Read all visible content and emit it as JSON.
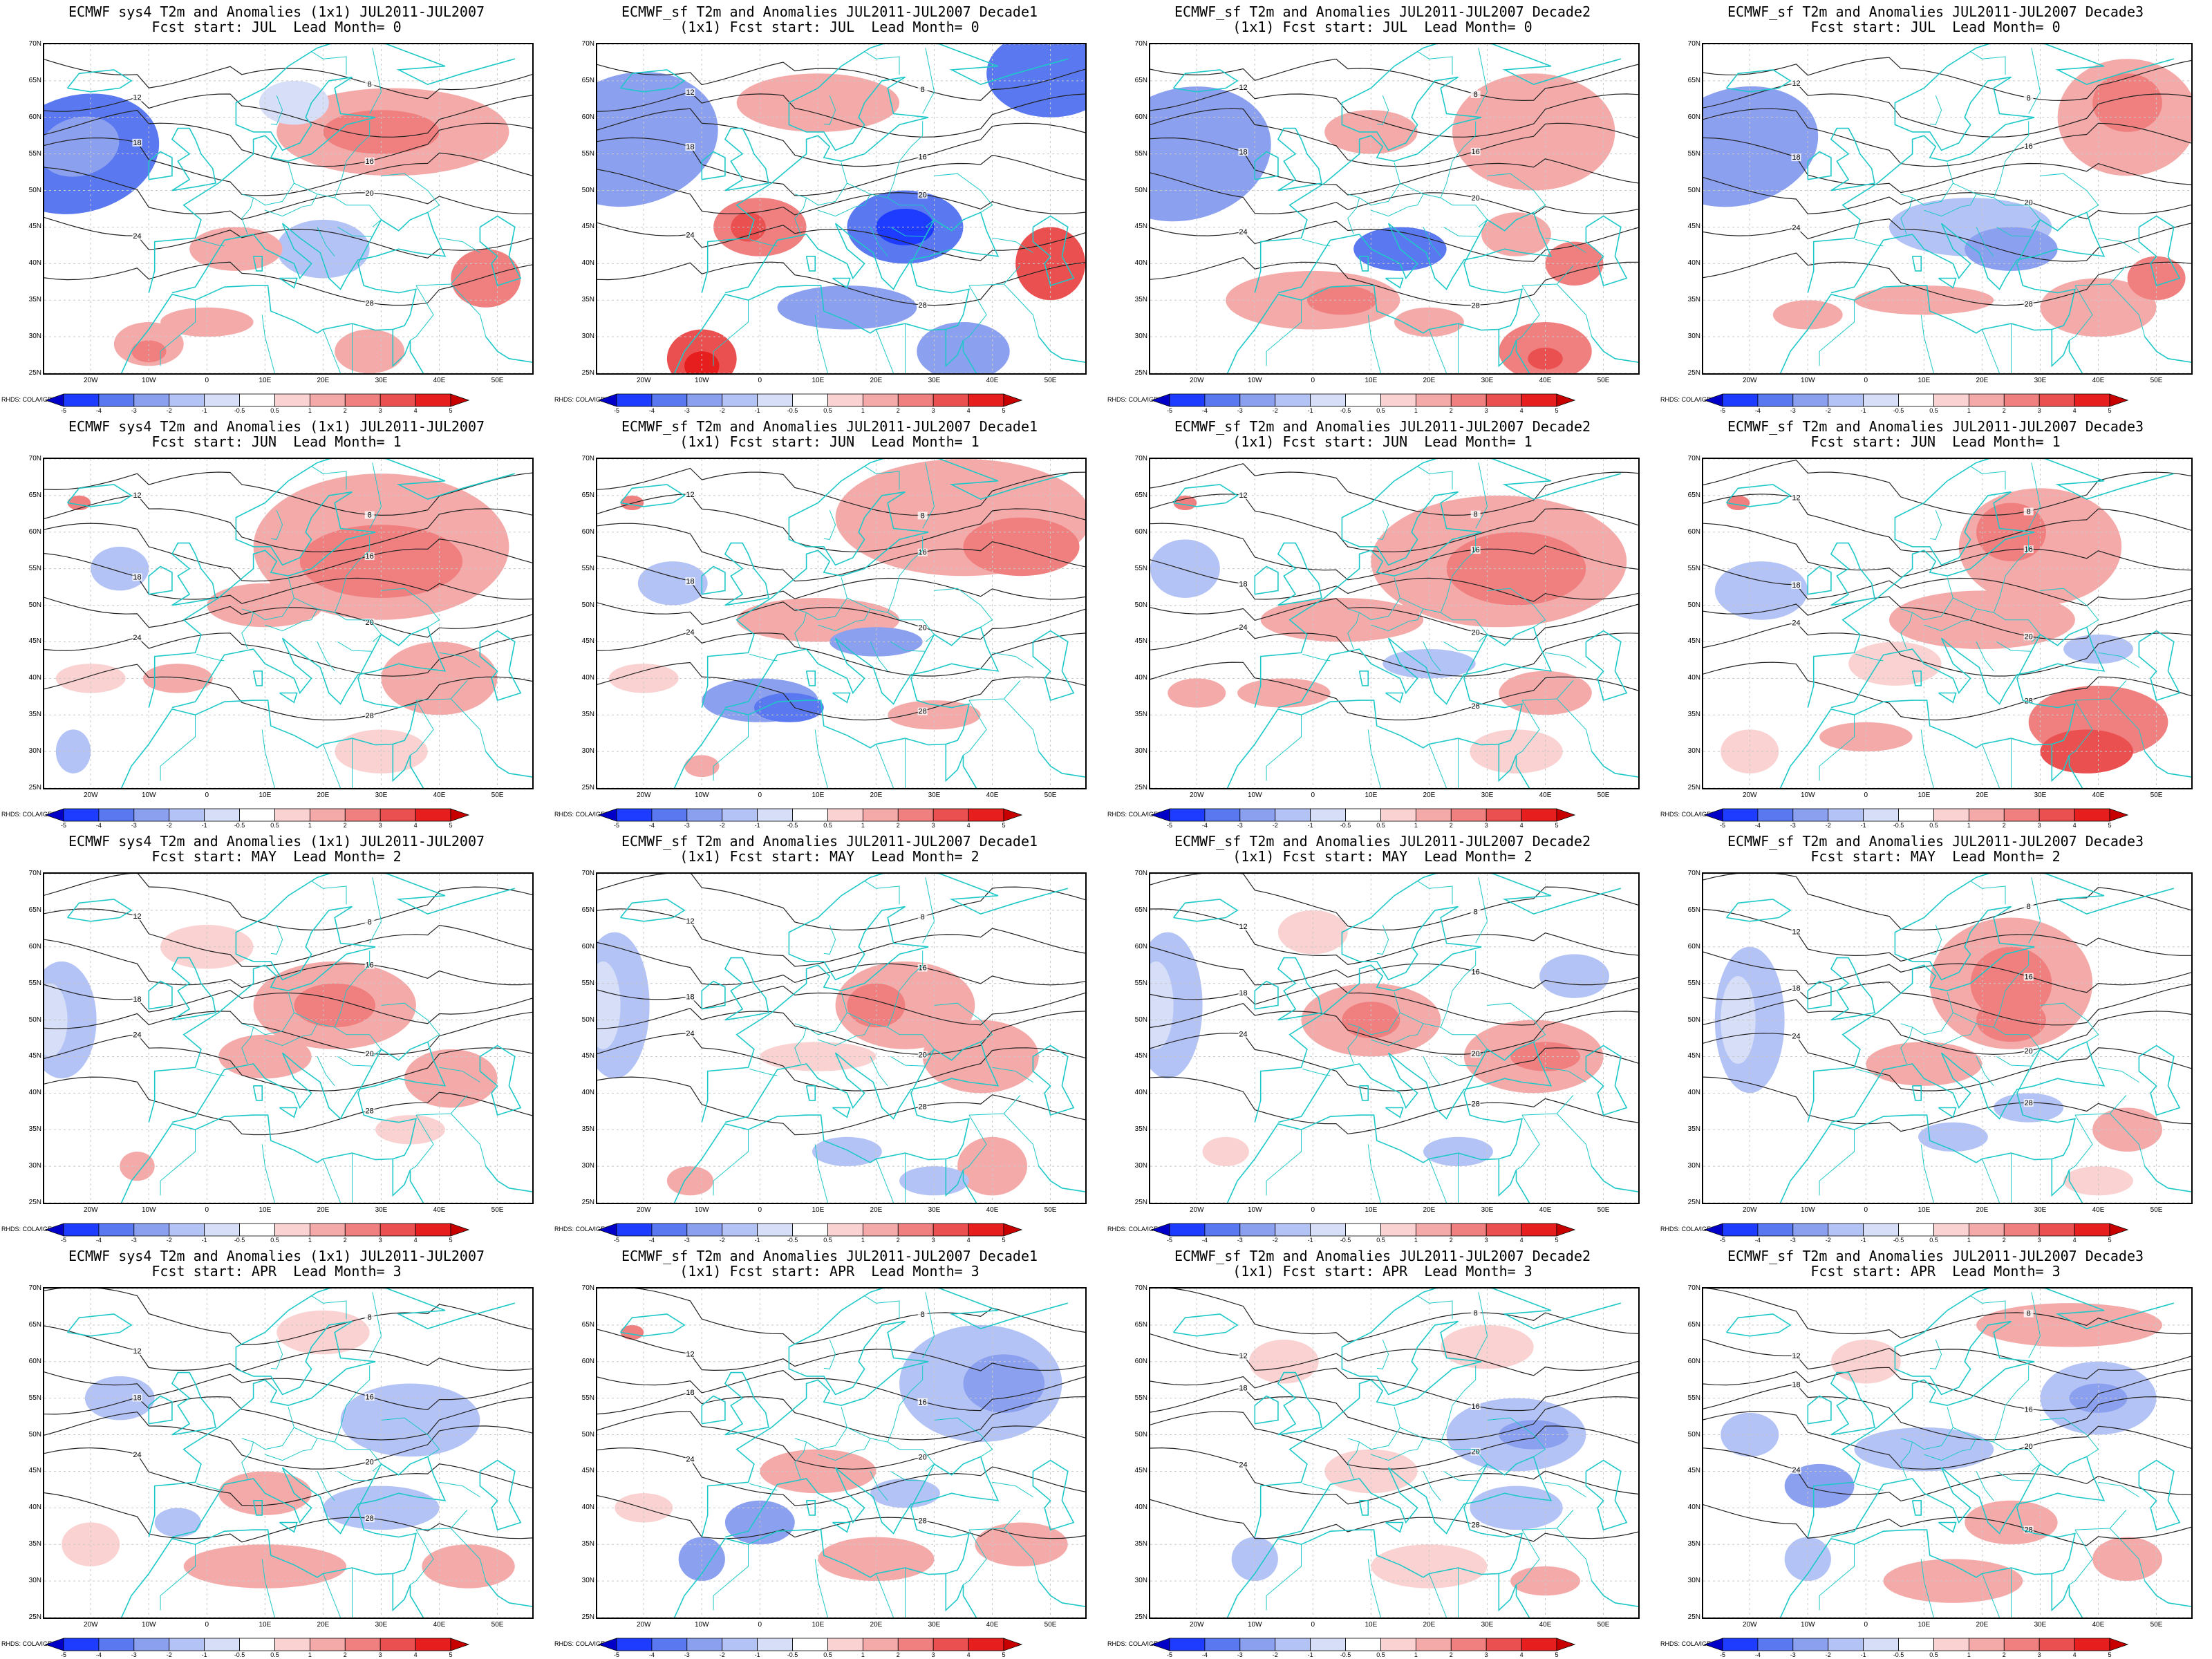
{
  "panels": [
    {
      "line1": "ECMWF sys4 T2m and Anomalies (1x1) JUL2011-JUL2007",
      "line2": "Fcst start: JUL  Lead Month= 0",
      "pattern": "r0c0"
    },
    {
      "line1": "ECMWF_sf T2m and Anomalies JUL2011-JUL2007 Decade1",
      "line2": "(1x1) Fcst start: JUL  Lead Month= 0",
      "pattern": "r0c1"
    },
    {
      "line1": "ECMWF_sf T2m and Anomalies JUL2011-JUL2007 Decade2",
      "line2": "(1x1) Fcst start: JUL  Lead Month= 0",
      "pattern": "r0c2"
    },
    {
      "line1": "ECMWF_sf T2m and Anomalies JUL2011-JUL2007 Decade3",
      "line2": "Fcst start: JUL  Lead Month= 0",
      "pattern": "r0c3"
    },
    {
      "line1": "ECMWF sys4 T2m and Anomalies (1x1) JUL2011-JUL2007",
      "line2": "Fcst start: JUN  Lead Month= 1",
      "pattern": "r1c0"
    },
    {
      "line1": "ECMWF_sf T2m and Anomalies JUL2011-JUL2007 Decade1",
      "line2": "(1x1) Fcst start: JUN  Lead Month= 1",
      "pattern": "r1c1"
    },
    {
      "line1": "ECMWF_sf T2m and Anomalies JUL2011-JUL2007 Decade2",
      "line2": "(1x1) Fcst start: JUN  Lead Month= 1",
      "pattern": "r1c2"
    },
    {
      "line1": "ECMWF_sf T2m and Anomalies JUL2011-JUL2007 Decade3",
      "line2": "Fcst start: JUN  Lead Month= 1",
      "pattern": "r1c3"
    },
    {
      "line1": "ECMWF sys4 T2m and Anomalies (1x1) JUL2011-JUL2007",
      "line2": "Fcst start: MAY  Lead Month= 2",
      "pattern": "r2c0"
    },
    {
      "line1": "ECMWF_sf T2m and Anomalies JUL2011-JUL2007 Decade1",
      "line2": "(1x1) Fcst start: MAY  Lead Month= 2",
      "pattern": "r2c1"
    },
    {
      "line1": "ECMWF_sf T2m and Anomalies JUL2011-JUL2007 Decade2",
      "line2": "(1x1) Fcst start: MAY  Lead Month= 2",
      "pattern": "r2c2"
    },
    {
      "line1": "ECMWF_sf T2m and Anomalies JUL2011-JUL2007 Decade3",
      "line2": "Fcst start: MAY  Lead Month= 2",
      "pattern": "r2c3"
    },
    {
      "line1": "ECMWF sys4 T2m and Anomalies (1x1) JUL2011-JUL2007",
      "line2": "Fcst start: APR  Lead Month= 3",
      "pattern": "r3c0"
    },
    {
      "line1": "ECMWF_sf T2m and Anomalies JUL2011-JUL2007 Decade1",
      "line2": "(1x1) Fcst start: APR  Lead Month= 3",
      "pattern": "r3c1"
    },
    {
      "line1": "ECMWF_sf T2m and Anomalies JUL2011-JUL2007 Decade2",
      "line2": "(1x1) Fcst start: APR  Lead Month= 3",
      "pattern": "r3c2"
    },
    {
      "line1": "ECMWF_sf T2m and Anomalies JUL2011-JUL2007 Decade3",
      "line2": "Fcst start: APR  Lead Month= 3",
      "pattern": "r3c3"
    }
  ],
  "map": {
    "lat_labels": [
      "70N",
      "65N",
      "60N",
      "55N",
      "50N",
      "45N",
      "40N",
      "35N",
      "30N",
      "25N"
    ],
    "lon_labels": [
      "20W",
      "10W",
      "0",
      "10E",
      "20E",
      "30E",
      "40E",
      "50E"
    ],
    "lat_range": [
      25,
      70
    ],
    "lon_range": [
      -28,
      56
    ],
    "contour_labels": [
      "8",
      "12",
      "16",
      "18",
      "20",
      "24",
      "28"
    ],
    "credit": "RHDS: COLA/IGES"
  },
  "colorbar": {
    "levels": [
      "-5",
      "-4",
      "-3",
      "-2",
      "-1",
      "-0.5",
      "0.5",
      "1",
      "2",
      "3",
      "4",
      "5"
    ],
    "colors": [
      "#0000c8",
      "#1e3cff",
      "#5a78f0",
      "#8ca0f0",
      "#b4c3f5",
      "#d7dff8",
      "#ffffff",
      "#fad2d2",
      "#f5aaaa",
      "#f08080",
      "#eb5050",
      "#e61e1e",
      "#c80000"
    ]
  }
}
